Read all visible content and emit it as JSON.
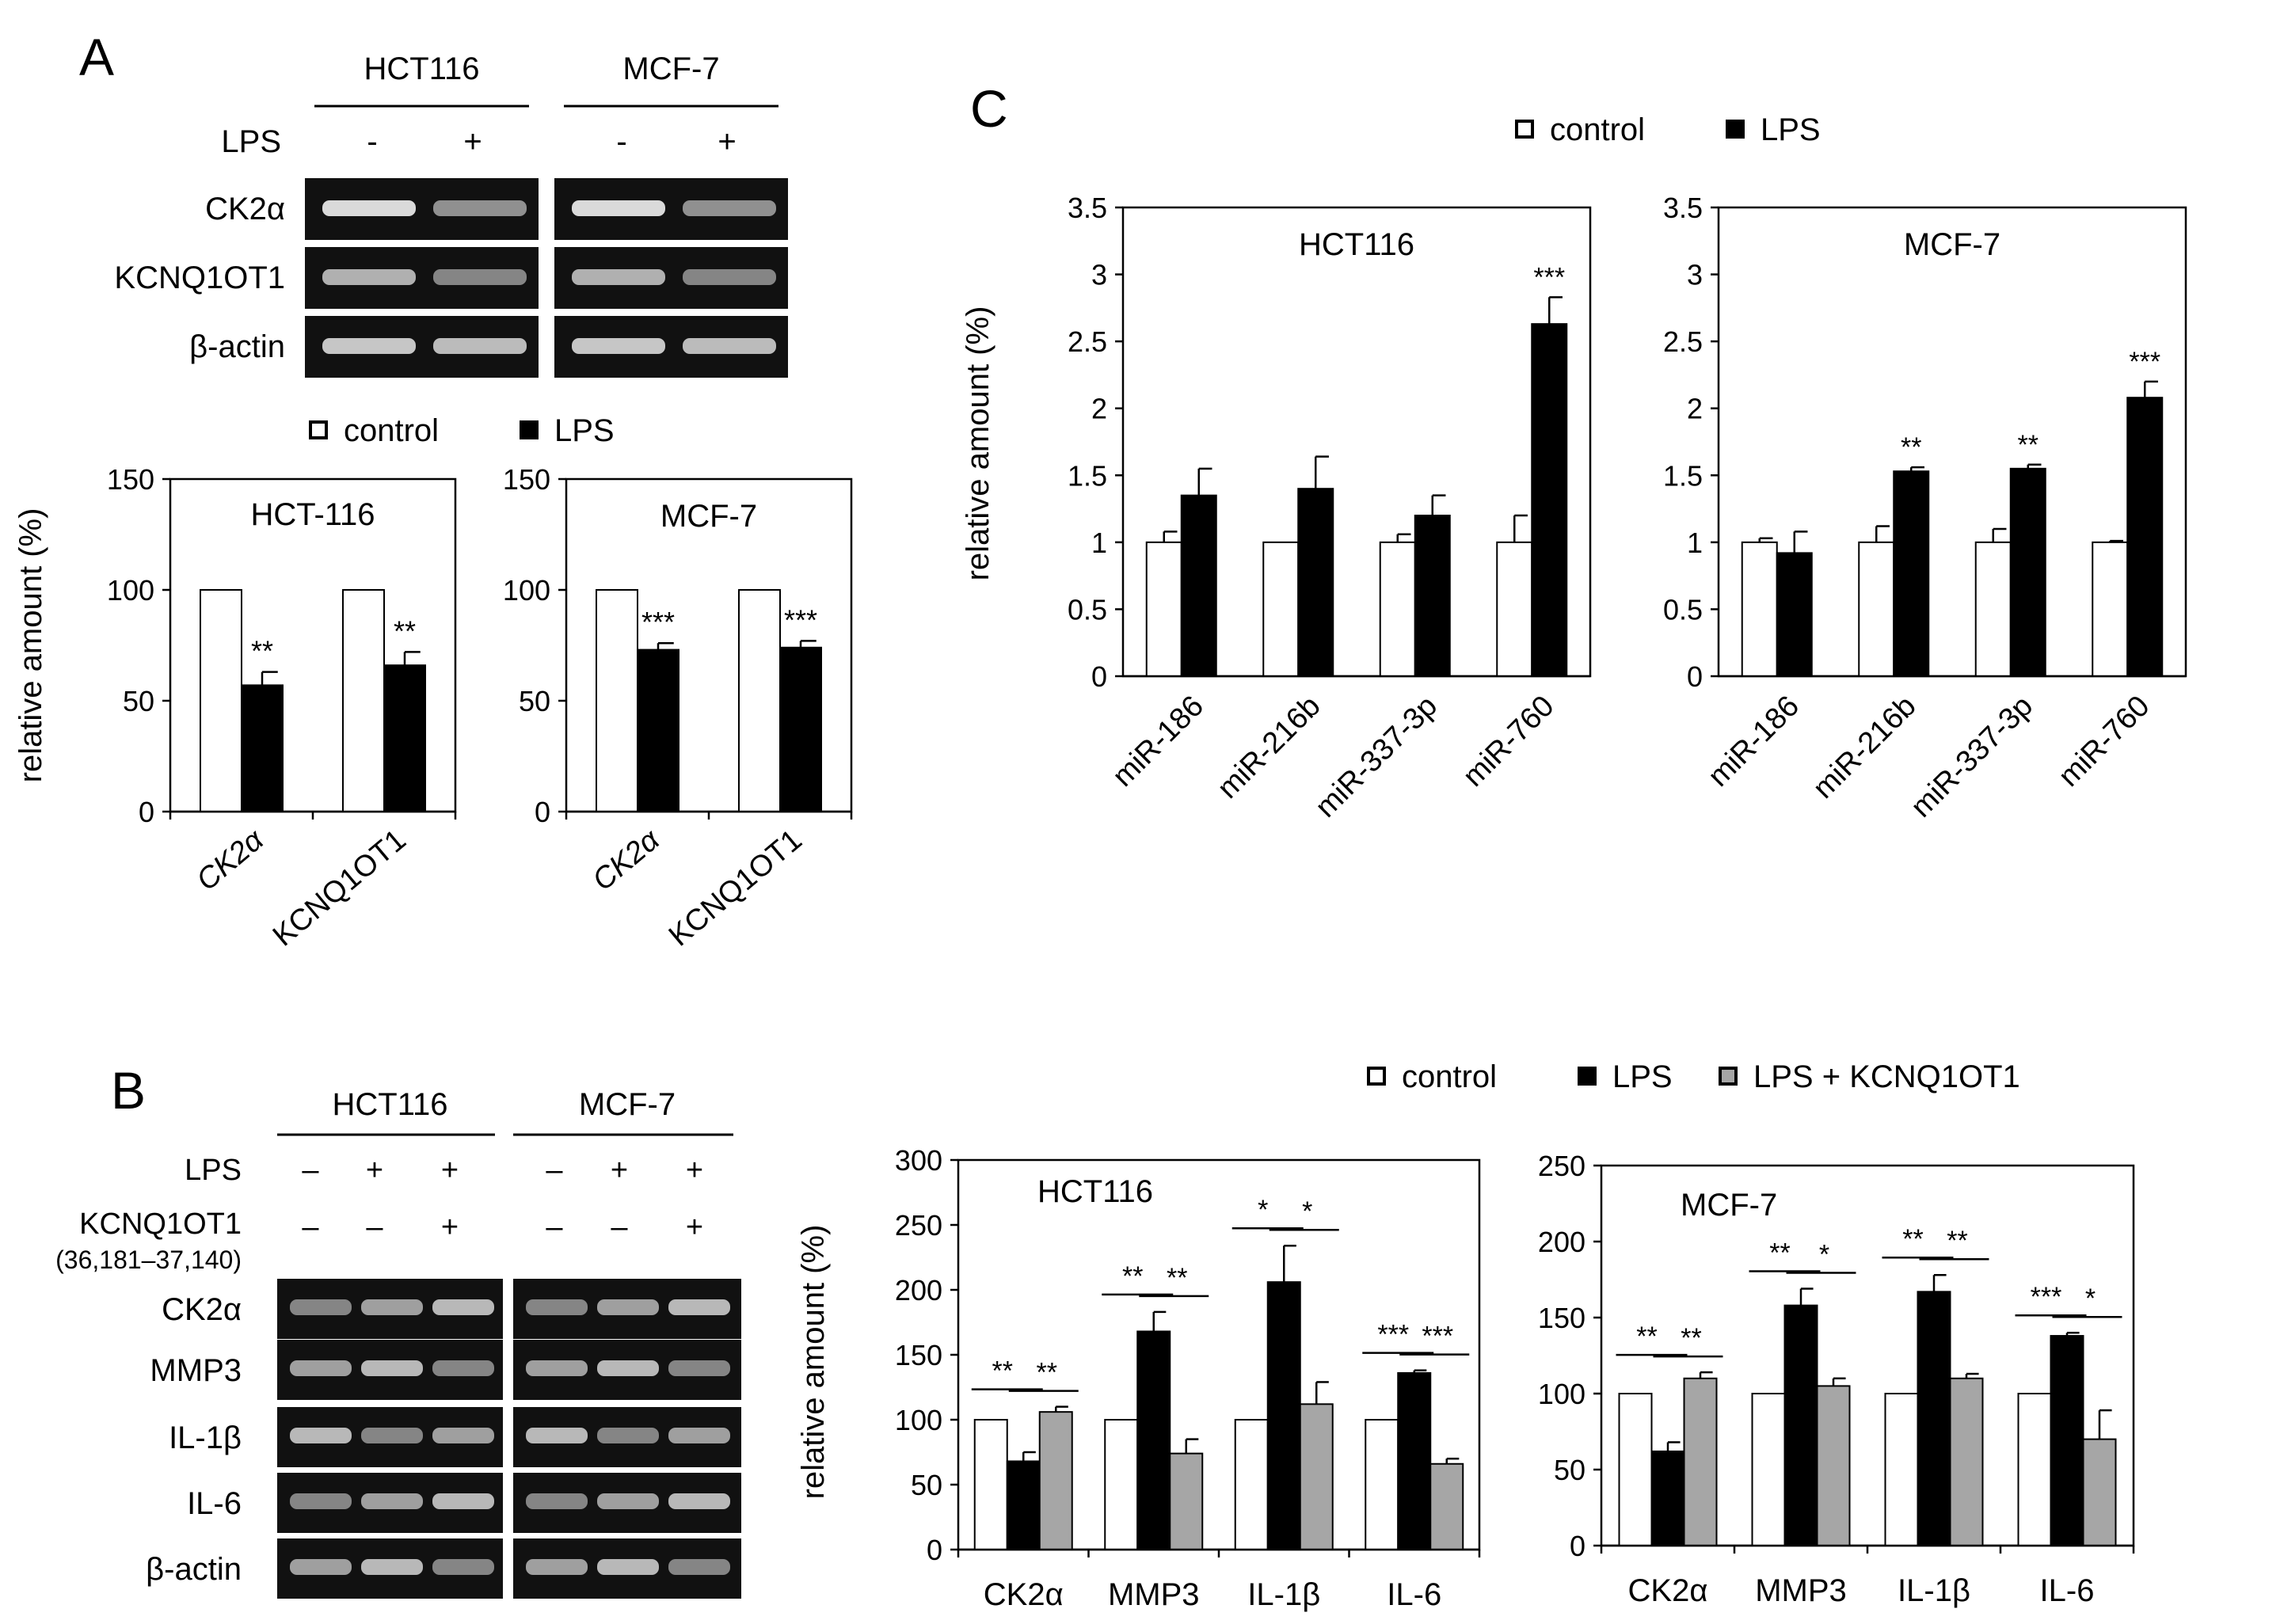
{
  "panel_labels": {
    "A": "A",
    "B": "B",
    "C": "C"
  },
  "colors": {
    "control": "#ffffff",
    "lps": "#000000",
    "lps_kcnq": "#a6a6a6",
    "gel": "#111111",
    "band": "#e6e6e6"
  },
  "gel_A": {
    "cell_lines": [
      "HCT116",
      "MCF-7"
    ],
    "lps_label": "LPS",
    "lps_marks": [
      "-",
      "+",
      "-",
      "+"
    ],
    "rows": [
      "CK2α",
      "KCNQ1OT1",
      "β-actin"
    ]
  },
  "gel_B": {
    "cell_lines": [
      "HCT116",
      "MCF-7"
    ],
    "lps_label": "LPS",
    "kcnq_label": "KCNQ1OT1",
    "kcnq_sub": "(36,181–37,140)",
    "lps_marks": [
      "–",
      "+",
      "+",
      "–",
      "+",
      "+"
    ],
    "kcnq_marks": [
      "–",
      "–",
      "+",
      "–",
      "–",
      "+"
    ],
    "rows": [
      "CK2α",
      "MMP3",
      "IL-1β",
      "IL-6",
      "β-actin"
    ]
  },
  "legends": {
    "A": [
      "control",
      "LPS"
    ],
    "C": [
      "control",
      "LPS"
    ],
    "B": [
      "control",
      "LPS",
      "LPS + KCNQ1OT1"
    ]
  },
  "chart_data": [
    {
      "id": "A_HCT116",
      "type": "bar",
      "title": "HCT-116",
      "ylabel": "relative amount (%)",
      "ylim": [
        0,
        150
      ],
      "yticks": [
        0,
        50,
        100,
        150
      ],
      "categories": [
        "CK2α",
        "KCNQ1OT1"
      ],
      "series": [
        {
          "name": "control",
          "values": [
            100,
            100
          ],
          "errors": [
            0,
            0
          ],
          "sig": [
            "",
            ""
          ]
        },
        {
          "name": "LPS",
          "values": [
            57,
            66
          ],
          "errors": [
            6,
            6
          ],
          "sig": [
            "**",
            "**"
          ]
        }
      ]
    },
    {
      "id": "A_MCF7",
      "type": "bar",
      "title": "MCF-7",
      "ylabel": "",
      "ylim": [
        0,
        150
      ],
      "yticks": [
        0,
        50,
        100,
        150
      ],
      "categories": [
        "CK2α",
        "KCNQ1OT1"
      ],
      "series": [
        {
          "name": "control",
          "values": [
            100,
            100
          ],
          "errors": [
            0,
            0
          ],
          "sig": [
            "",
            ""
          ]
        },
        {
          "name": "LPS",
          "values": [
            73,
            74
          ],
          "errors": [
            3,
            3
          ],
          "sig": [
            "***",
            "***"
          ]
        }
      ]
    },
    {
      "id": "C_HCT116",
      "type": "bar",
      "title": "HCT116",
      "ylabel": "relative amount (%)",
      "ylim": [
        0,
        3.5
      ],
      "yticks": [
        0,
        0.5,
        1,
        1.5,
        2,
        2.5,
        3,
        3.5
      ],
      "ytick_labels": [
        "0",
        "0.5",
        "1",
        "1.5",
        "2",
        "2.5",
        "3",
        "3.5"
      ],
      "categories": [
        "miR-186",
        "miR-216b",
        "miR-337-3p",
        "miR-760"
      ],
      "series": [
        {
          "name": "control",
          "values": [
            1.0,
            1.0,
            1.0,
            1.0
          ],
          "errors": [
            0.08,
            0,
            0.06,
            0.2
          ],
          "sig": [
            "",
            "",
            "",
            ""
          ]
        },
        {
          "name": "LPS",
          "values": [
            1.35,
            1.4,
            1.2,
            2.63
          ],
          "errors": [
            0.2,
            0.24,
            0.15,
            0.2
          ],
          "sig": [
            "",
            "",
            "",
            "***"
          ]
        }
      ]
    },
    {
      "id": "C_MCF7",
      "type": "bar",
      "title": "MCF-7",
      "ylabel": "",
      "ylim": [
        0,
        3.5
      ],
      "yticks": [
        0,
        0.5,
        1,
        1.5,
        2,
        2.5,
        3,
        3.5
      ],
      "ytick_labels": [
        "0",
        "0.5",
        "1",
        "1.5",
        "2",
        "2.5",
        "3",
        "3.5"
      ],
      "categories": [
        "miR-186",
        "miR-216b",
        "miR-337-3p",
        "miR-760"
      ],
      "series": [
        {
          "name": "control",
          "values": [
            1.0,
            1.0,
            1.0,
            1.0
          ],
          "errors": [
            0.03,
            0.12,
            0.1,
            0.01
          ],
          "sig": [
            "",
            "",
            "",
            ""
          ]
        },
        {
          "name": "LPS",
          "values": [
            0.92,
            1.53,
            1.55,
            2.08
          ],
          "errors": [
            0.16,
            0.03,
            0.03,
            0.12
          ],
          "sig": [
            "",
            "**",
            "**",
            "***"
          ]
        }
      ]
    },
    {
      "id": "B_HCT116",
      "type": "bar",
      "title": "HCT116",
      "ylabel": "relative amount (%)",
      "ylim": [
        0,
        300
      ],
      "yticks": [
        0,
        50,
        100,
        150,
        200,
        250,
        300
      ],
      "categories": [
        "CK2α",
        "MMP3",
        "IL-1β",
        "IL-6"
      ],
      "series": [
        {
          "name": "control",
          "values": [
            100,
            100,
            100,
            100
          ],
          "errors": [
            0,
            0,
            0,
            0
          ]
        },
        {
          "name": "LPS",
          "values": [
            68,
            168,
            206,
            136
          ],
          "errors": [
            7,
            15,
            28,
            2
          ]
        },
        {
          "name": "LPS + KCNQ1OT1",
          "values": [
            106,
            74,
            112,
            66
          ],
          "errors": [
            4,
            11,
            17,
            4
          ]
        }
      ],
      "brackets": [
        {
          "left": [
            "**",
            "**",
            "*",
            "***"
          ],
          "right": [
            "**",
            "**",
            "*",
            "***"
          ]
        }
      ]
    },
    {
      "id": "B_MCF7",
      "type": "bar",
      "title": "MCF-7",
      "ylabel": "",
      "ylim": [
        0,
        250
      ],
      "yticks": [
        0,
        50,
        100,
        150,
        200,
        250
      ],
      "categories": [
        "CK2α",
        "MMP3",
        "IL-1β",
        "IL-6"
      ],
      "series": [
        {
          "name": "control",
          "values": [
            100,
            100,
            100,
            100
          ],
          "errors": [
            0,
            0,
            0,
            0
          ]
        },
        {
          "name": "LPS",
          "values": [
            62,
            158,
            167,
            138
          ],
          "errors": [
            6,
            11,
            11,
            2
          ]
        },
        {
          "name": "LPS + KCNQ1OT1",
          "values": [
            110,
            105,
            110,
            70
          ],
          "errors": [
            4,
            5,
            3,
            19
          ]
        }
      ],
      "brackets": [
        {
          "left": [
            "**",
            "**",
            "**",
            "***"
          ],
          "right": [
            "**",
            "*",
            "**",
            "*"
          ]
        }
      ]
    }
  ]
}
